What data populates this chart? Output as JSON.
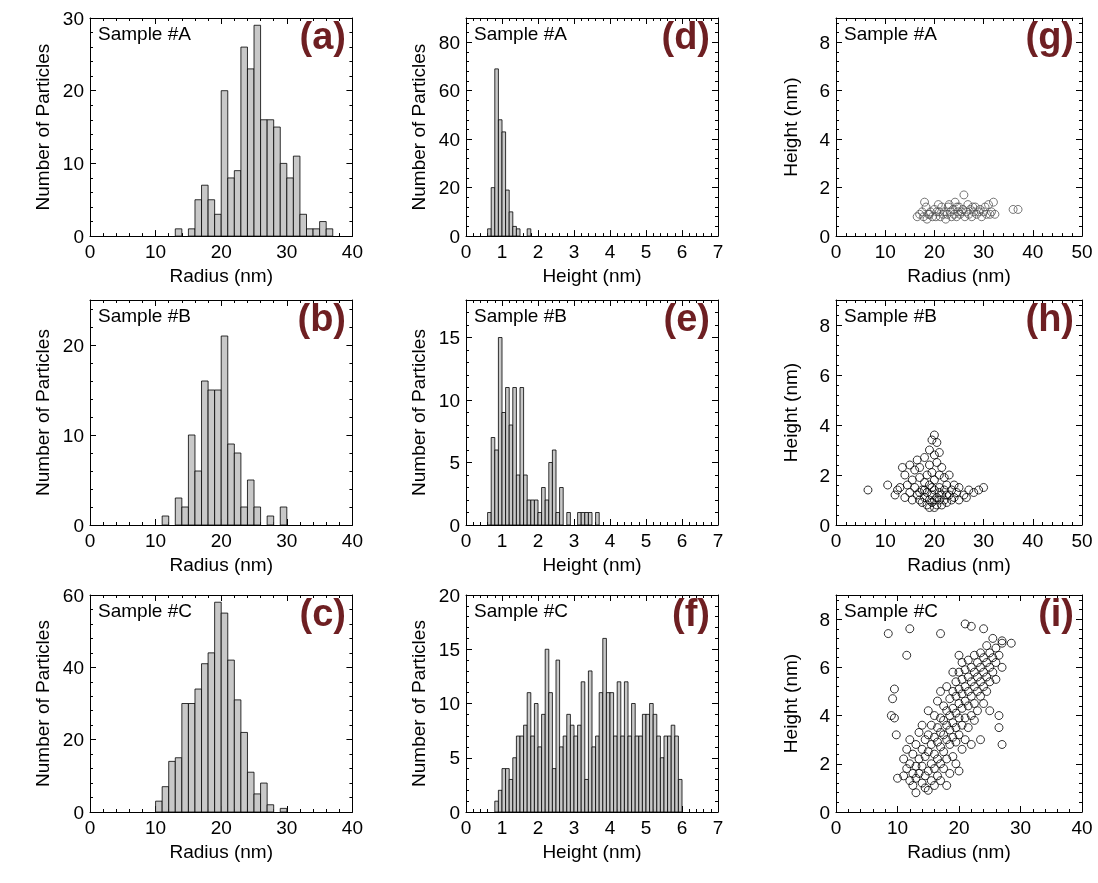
{
  "chart_data": [
    {
      "type": "histogram",
      "xlabel": "Radius (nm)",
      "ylabel": "Number of Particles",
      "annotations": [
        "Sample #A",
        "(a)"
      ],
      "color": "#c8c8c8",
      "bins": [
        13,
        14,
        15,
        16,
        17,
        18,
        19,
        20,
        21,
        22,
        23,
        24,
        25,
        26,
        27,
        28,
        29,
        30,
        31,
        32,
        33,
        34,
        35,
        36,
        37
      ],
      "values": [
        1,
        0,
        1,
        5,
        7,
        5,
        3,
        20,
        8,
        9,
        26,
        23,
        29,
        16,
        16,
        15,
        10,
        8,
        11,
        3,
        1,
        1,
        2,
        1
      ],
      "xlim": [
        0,
        40
      ],
      "xticks": [
        0,
        10,
        20,
        30,
        40
      ],
      "ylim": [
        0,
        30
      ],
      "yticks": [
        0,
        10,
        20,
        30
      ]
    },
    {
      "type": "histogram",
      "xlabel": "Height (nm)",
      "ylabel": "Number of Particles",
      "annotations": [
        "Sample #A",
        "(d)"
      ],
      "color": "#c8c8c8",
      "bins": [
        0.6,
        0.7,
        0.8,
        0.9,
        1.0,
        1.1,
        1.2,
        1.3,
        1.4,
        1.5,
        1.6,
        1.7,
        1.8
      ],
      "values": [
        3,
        20,
        69,
        48,
        43,
        19,
        10,
        4,
        3,
        0,
        0,
        3
      ],
      "xlim": [
        0,
        7
      ],
      "xticks": [
        0,
        1,
        2,
        3,
        4,
        5,
        6,
        7
      ],
      "ylim": [
        0,
        90
      ],
      "yticks": [
        0,
        20,
        40,
        60,
        80
      ]
    },
    {
      "type": "scatter",
      "xlabel": "Radius (nm)",
      "ylabel": "Height (nm)",
      "annotations": [
        "Sample #A",
        "(g)"
      ],
      "color": "#555555",
      "marker": "circle",
      "x": [
        16.5,
        17,
        17.5,
        17.8,
        18,
        18.3,
        18.5,
        19,
        19.2,
        19.6,
        20,
        20.3,
        20.5,
        21,
        21.2,
        21.5,
        21.8,
        22,
        22.3,
        22.6,
        23,
        23.2,
        23.5,
        23.8,
        24,
        24.2,
        24.5,
        24.8,
        25,
        25.2,
        25.5,
        25.8,
        26,
        26.2,
        26.5,
        26.8,
        27,
        27.3,
        27.6,
        28,
        28.3,
        28.6,
        29,
        29.3,
        29.6,
        30,
        30.3,
        30.6,
        31,
        31.3,
        31.6,
        32,
        32.3,
        36,
        37,
        20.8,
        22.8,
        18.8,
        27.8,
        24.6
      ],
      "values": [
        0.8,
        0.9,
        1.0,
        0.8,
        1.4,
        1.2,
        0.7,
        0.9,
        1.0,
        0.8,
        1.1,
        0.8,
        1.0,
        1.0,
        0.8,
        1.2,
        0.9,
        1.0,
        0.7,
        0.9,
        1.3,
        1.0,
        0.8,
        1.1,
        0.9,
        1.4,
        0.8,
        1.0,
        1.2,
        0.9,
        1.0,
        1.1,
        1.7,
        0.8,
        1.0,
        1.3,
        0.9,
        1.1,
        0.8,
        1.0,
        1.2,
        0.9,
        1.0,
        1.1,
        0.8,
        1.0,
        1.2,
        0.9,
        1.3,
        0.9,
        1.0,
        1.4,
        0.9,
        1.1,
        1.1,
        1.3,
        1.2,
        0.9,
        1.2,
        1.2
      ],
      "xlim": [
        0,
        50
      ],
      "xticks": [
        0,
        10,
        20,
        30,
        40,
        50
      ],
      "ylim": [
        0,
        9
      ],
      "yticks": [
        0,
        2,
        4,
        6,
        8
      ]
    },
    {
      "type": "histogram",
      "xlabel": "Radius (nm)",
      "ylabel": "Number of Particles",
      "annotations": [
        "Sample #B",
        "(b)"
      ],
      "color": "#c8c8c8",
      "bins": [
        11,
        12,
        13,
        14,
        15,
        16,
        17,
        18,
        19,
        20,
        21,
        22,
        23,
        24,
        25,
        26,
        27,
        28,
        29,
        30
      ],
      "values": [
        1,
        0,
        3,
        2,
        10,
        6,
        16,
        15,
        15,
        21,
        9,
        8,
        2,
        5,
        2,
        0,
        1,
        0,
        2
      ],
      "xlim": [
        0,
        40
      ],
      "xticks": [
        0,
        10,
        20,
        30,
        40
      ],
      "ylim": [
        0,
        25
      ],
      "yticks": [
        0,
        10,
        20
      ]
    },
    {
      "type": "histogram",
      "xlabel": "Height (nm)",
      "ylabel": "Number of Particles",
      "annotations": [
        "Sample #B",
        "(e)"
      ],
      "color": "#c8c8c8",
      "bins": [
        0.6,
        0.7,
        0.8,
        0.9,
        1.0,
        1.1,
        1.2,
        1.3,
        1.4,
        1.5,
        1.6,
        1.7,
        1.8,
        1.9,
        2.0,
        2.1,
        2.2,
        2.3,
        2.4,
        2.5,
        2.6,
        2.7,
        2.8,
        2.9,
        3.0,
        3.1,
        3.2,
        3.3,
        3.4,
        3.5,
        3.6,
        3.7
      ],
      "values": [
        1,
        7,
        6,
        15,
        9,
        11,
        8,
        11,
        4,
        11,
        4,
        2,
        2,
        2,
        1,
        3,
        2,
        5,
        6,
        1,
        3,
        0,
        1,
        0,
        0,
        1,
        1,
        1,
        1,
        0,
        1
      ],
      "xlim": [
        0,
        7
      ],
      "xticks": [
        0,
        1,
        2,
        3,
        4,
        5,
        6,
        7
      ],
      "ylim": [
        0,
        18
      ],
      "yticks": [
        0,
        5,
        10,
        15
      ]
    },
    {
      "type": "scatter",
      "xlabel": "Radius (nm)",
      "ylabel": "Height (nm)",
      "annotations": [
        "Sample #B",
        "(h)"
      ],
      "color": "#000000",
      "marker": "circle",
      "x": [
        6.5,
        10.5,
        12,
        12.5,
        13,
        13.5,
        14,
        14,
        14.5,
        15,
        15,
        15.5,
        15.5,
        16,
        16,
        16.5,
        16.5,
        17,
        17,
        17,
        17.5,
        17.5,
        18,
        18,
        18,
        18.5,
        18.5,
        18.5,
        19,
        19,
        19,
        19,
        19,
        19.5,
        19.5,
        19.5,
        19.5,
        20,
        20,
        20,
        20,
        20,
        20,
        20.5,
        20.5,
        20.5,
        20.5,
        21,
        21,
        21,
        21,
        21.5,
        21.5,
        21.5,
        22,
        22,
        22,
        22.5,
        22.5,
        23,
        23,
        23.5,
        23.5,
        24,
        24,
        24.5,
        25,
        25,
        26,
        26.5,
        27,
        28,
        29,
        30,
        17,
        18,
        19.5,
        21,
        22.5
      ],
      "values": [
        1.4,
        1.6,
        1.2,
        1.4,
        1.5,
        2.3,
        1.1,
        2.0,
        1.6,
        1.3,
        2.4,
        1.8,
        1.0,
        2.2,
        1.5,
        1.2,
        2.6,
        1.9,
        1.0,
        2.3,
        1.4,
        0.9,
        2.7,
        1.7,
        1.1,
        2.0,
        0.8,
        1.3,
        3.0,
        2.4,
        1.6,
        1.0,
        0.7,
        3.4,
        2.1,
        1.2,
        0.9,
        3.6,
        2.8,
        1.8,
        1.4,
        1.0,
        0.7,
        3.3,
        2.5,
        1.1,
        0.8,
        2.9,
        2.0,
        1.5,
        1.0,
        2.3,
        1.2,
        0.8,
        1.9,
        1.4,
        1.0,
        1.6,
        0.9,
        1.2,
        2.0,
        1.4,
        1.0,
        1.1,
        1.6,
        1.3,
        1.0,
        1.5,
        1.2,
        1.1,
        1.4,
        1.3,
        1.4,
        1.5,
        1.3,
        1.4,
        1.5,
        1.3,
        1.2
      ],
      "xlim": [
        0,
        50
      ],
      "xticks": [
        0,
        10,
        20,
        30,
        40,
        50
      ],
      "ylim": [
        0,
        9
      ],
      "yticks": [
        0,
        2,
        4,
        6,
        8
      ]
    },
    {
      "type": "histogram",
      "xlabel": "Radius (nm)",
      "ylabel": "Number of Particles",
      "annotations": [
        "Sample #C",
        "(c)"
      ],
      "color": "#c8c8c8",
      "bins": [
        10,
        11,
        12,
        13,
        14,
        15,
        16,
        17,
        18,
        19,
        20,
        21,
        22,
        23,
        24,
        25,
        26,
        27,
        28,
        29,
        30
      ],
      "values": [
        3,
        7,
        14,
        15,
        30,
        30,
        34,
        41,
        44,
        58,
        55,
        42,
        31,
        22,
        11,
        5,
        8,
        2,
        0,
        1
      ],
      "xlim": [
        0,
        40
      ],
      "xticks": [
        0,
        10,
        20,
        30,
        40
      ],
      "ylim": [
        0,
        60
      ],
      "yticks": [
        0,
        20,
        40,
        60
      ]
    },
    {
      "type": "histogram",
      "xlabel": "Height (nm)",
      "ylabel": "Number of Particles",
      "annotations": [
        "Sample #C",
        "(f)"
      ],
      "color": "#c8c8c8",
      "bins": [
        0.8,
        0.9,
        1.0,
        1.1,
        1.2,
        1.3,
        1.4,
        1.5,
        1.6,
        1.7,
        1.8,
        1.9,
        2.0,
        2.1,
        2.2,
        2.3,
        2.4,
        2.5,
        2.6,
        2.7,
        2.8,
        2.9,
        3.0,
        3.1,
        3.2,
        3.3,
        3.4,
        3.5,
        3.6,
        3.7,
        3.8,
        3.9,
        4.0,
        4.1,
        4.2,
        4.3,
        4.4,
        4.5,
        4.6,
        4.7,
        4.8,
        4.9,
        5.0,
        5.1,
        5.2,
        5.3,
        5.4,
        5.5,
        5.6,
        5.7,
        5.8,
        5.9,
        6.0
      ],
      "values": [
        1,
        2,
        4,
        4,
        3,
        5,
        7,
        7,
        8,
        11,
        7,
        10,
        6,
        9,
        15,
        11,
        4,
        14,
        6,
        7,
        9,
        8,
        7,
        8,
        12,
        3,
        13,
        6,
        7,
        11,
        16,
        11,
        11,
        7,
        12,
        7,
        12,
        7,
        10,
        7,
        7,
        9,
        9,
        10,
        9,
        7,
        5,
        7,
        7,
        8,
        7,
        3
      ],
      "xlim": [
        0,
        7
      ],
      "xticks": [
        0,
        1,
        2,
        3,
        4,
        5,
        6,
        7
      ],
      "ylim": [
        0,
        20
      ],
      "yticks": [
        0,
        5,
        10,
        15,
        20
      ]
    },
    {
      "type": "scatter",
      "xlabel": "Radius (nm)",
      "ylabel": "Height (nm)",
      "annotations": [
        "Sample #C",
        "(i)"
      ],
      "color": "#000000",
      "marker": "circle",
      "x": [
        11,
        11,
        11.5,
        11.5,
        12,
        12,
        12,
        12.5,
        12.5,
        12.5,
        13,
        13,
        13,
        13,
        13.5,
        13.5,
        13.5,
        14,
        14,
        14,
        14,
        14.5,
        14.5,
        14.5,
        14.5,
        15,
        15,
        15,
        15,
        15,
        15.5,
        15.5,
        15.5,
        15.5,
        16,
        16,
        16,
        16,
        16,
        16.5,
        16.5,
        16.5,
        16.5,
        16.5,
        17,
        17,
        17,
        17,
        17,
        17,
        17.5,
        17.5,
        17.5,
        17.5,
        17.5,
        18,
        18,
        18,
        18,
        18,
        18,
        18.5,
        18.5,
        18.5,
        18.5,
        18.5,
        19,
        19,
        19,
        19,
        19,
        19,
        19.5,
        19.5,
        19.5,
        19.5,
        19.5,
        19.5,
        20,
        20,
        20,
        20,
        20,
        20,
        20,
        20.5,
        20.5,
        20.5,
        20.5,
        20.5,
        20.5,
        21,
        21,
        21,
        21,
        21,
        21.5,
        21.5,
        21.5,
        21.5,
        21.5,
        22,
        22,
        22,
        22,
        22,
        22.5,
        22.5,
        22.5,
        22.5,
        22.5,
        23,
        23,
        23,
        23,
        23.5,
        23.5,
        23.5,
        23.5,
        23.5,
        24,
        24,
        24,
        24,
        24.5,
        24.5,
        24.5,
        24.5,
        25,
        25,
        25,
        25,
        25.5,
        25.5,
        26,
        26,
        26,
        26.5,
        27,
        27,
        8.5,
        11.5,
        9.5,
        9.2,
        9,
        9.5,
        9.8,
        10,
        12,
        17,
        21,
        22,
        24,
        25.5,
        27,
        28.5,
        26.5,
        26.5,
        27
      ],
      "values": [
        1.5,
        2.2,
        1.8,
        2.6,
        1.3,
        2.0,
        3.0,
        1.6,
        2.4,
        1.1,
        1.9,
        2.8,
        1.4,
        0.8,
        2.2,
        1.6,
        3.3,
        1.2,
        1.9,
        2.6,
        3.6,
        1.5,
        2.3,
        3.0,
        1.0,
        0.9,
        1.7,
        2.5,
        3.2,
        4.2,
        1.3,
        2.0,
        2.8,
        3.6,
        1.1,
        1.8,
        2.4,
        3.1,
        4.0,
        1.5,
        2.2,
        2.9,
        3.5,
        4.6,
        1.3,
        2.0,
        2.7,
        3.3,
        3.9,
        5.0,
        1.8,
        2.5,
        3.2,
        3.8,
        4.4,
        1.1,
        2.2,
        3.0,
        3.6,
        4.2,
        5.2,
        1.6,
        2.8,
        3.4,
        4.0,
        4.7,
        2.3,
        3.1,
        3.7,
        4.3,
        5.0,
        5.8,
        2.0,
        2.9,
        3.5,
        4.1,
        4.8,
        5.4,
        1.7,
        3.2,
        3.9,
        4.5,
        5.1,
        5.8,
        6.5,
        2.6,
        3.6,
        4.3,
        4.9,
        5.5,
        6.2,
        3.0,
        3.9,
        4.6,
        5.2,
        5.9,
        3.5,
        4.4,
        5.0,
        5.6,
        6.3,
        2.8,
        4.0,
        4.8,
        5.4,
        6.0,
        3.8,
        4.5,
        5.2,
        5.8,
        6.5,
        4.2,
        5.0,
        5.6,
        6.2,
        3.0,
        4.8,
        5.4,
        6.0,
        6.6,
        4.5,
        5.2,
        5.8,
        6.4,
        5.0,
        5.6,
        6.2,
        6.9,
        4.2,
        5.4,
        6.0,
        6.6,
        5.8,
        6.4,
        5.5,
        6.2,
        6.8,
        6.5,
        6.0,
        7.0,
        7.4,
        6.5,
        5.1,
        4.7,
        4.0,
        3.9,
        3.2,
        1.4,
        7.6,
        7.4,
        7.8,
        7.7,
        7.6,
        7.2,
        7.1,
        7.0,
        4.0,
        3.5,
        2.8
      ],
      "xlim": [
        0,
        40
      ],
      "xticks": [
        0,
        10,
        20,
        30,
        40
      ],
      "ylim": [
        0,
        9
      ],
      "yticks": [
        0,
        2,
        4,
        6,
        8
      ]
    }
  ]
}
